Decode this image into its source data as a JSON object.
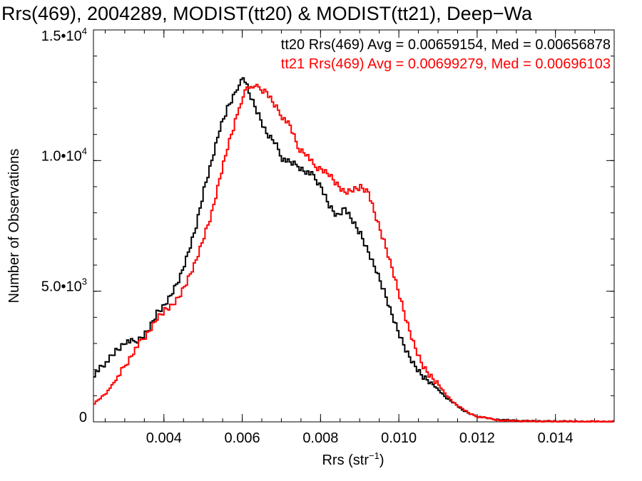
{
  "chart_data": {
    "type": "line",
    "title": "Rrs(469), 2004289, MODIST(tt20) & MODIST(tt21), Deep−Wa",
    "xlabel": "Rrs (str",
    "xlabel_sup": "−1",
    "xlabel_close": ")",
    "ylabel": "Number of Observations",
    "xlim": [
      0.0022,
      0.0155
    ],
    "ylim": [
      0,
      15000
    ],
    "x_ticks": [
      {
        "value": 0.004,
        "label": "0.004"
      },
      {
        "value": 0.006,
        "label": "0.006"
      },
      {
        "value": 0.008,
        "label": "0.008"
      },
      {
        "value": 0.01,
        "label": "0.010"
      },
      {
        "value": 0.012,
        "label": "0.012"
      },
      {
        "value": 0.014,
        "label": "0.014"
      }
    ],
    "y_ticks": [
      {
        "value": 0,
        "mantissa": "0",
        "exponent": ""
      },
      {
        "value": 5000,
        "mantissa": "5.0•10",
        "exponent": "3"
      },
      {
        "value": 10000,
        "mantissa": "1.0•10",
        "exponent": "4"
      },
      {
        "value": 15000,
        "mantissa": "1.5•10",
        "exponent": "4"
      }
    ],
    "x_minor_step": 0.0005,
    "y_minor_step": 1000,
    "legend_placement": "top-right",
    "series": [
      {
        "name": "tt20",
        "label": "tt20 Rrs(469) Avg = 0.00659154, Med = 0.00656878",
        "color": "#000000",
        "x": [
          0.0022,
          0.0025,
          0.0028,
          0.003,
          0.0032,
          0.0034,
          0.0036,
          0.0038,
          0.004,
          0.0042,
          0.0044,
          0.0046,
          0.0048,
          0.005,
          0.0052,
          0.0054,
          0.0056,
          0.0058,
          0.0059,
          0.006,
          0.0061,
          0.0062,
          0.0064,
          0.0066,
          0.0068,
          0.007,
          0.0072,
          0.0074,
          0.0076,
          0.0078,
          0.008,
          0.0082,
          0.0084,
          0.0086,
          0.0088,
          0.009,
          0.0092,
          0.0094,
          0.0096,
          0.0098,
          0.01,
          0.0102,
          0.0104,
          0.0106,
          0.0108,
          0.011,
          0.0112,
          0.0114,
          0.0116,
          0.0118,
          0.012,
          0.0122,
          0.0124,
          0.0126,
          0.013,
          0.014,
          0.0155
        ],
        "y": [
          1850,
          2250,
          2800,
          3100,
          3050,
          3250,
          3600,
          4200,
          4500,
          5000,
          5600,
          6500,
          7500,
          8900,
          10000,
          11200,
          12000,
          12600,
          12950,
          13050,
          12900,
          12400,
          11700,
          11000,
          10700,
          10100,
          9900,
          9800,
          9600,
          9400,
          9000,
          8300,
          7900,
          8200,
          7700,
          7200,
          6500,
          5800,
          5000,
          4100,
          3300,
          2600,
          2100,
          1700,
          1500,
          1200,
          900,
          700,
          450,
          300,
          200,
          150,
          100,
          80,
          40,
          20,
          10
        ]
      },
      {
        "name": "tt21",
        "label": "tt21 Rrs(469) Avg = 0.00699279, Med = 0.00696103",
        "color": "#ff0000",
        "x": [
          0.0022,
          0.0025,
          0.0028,
          0.003,
          0.0032,
          0.0034,
          0.0036,
          0.0038,
          0.004,
          0.0042,
          0.0044,
          0.0046,
          0.0048,
          0.005,
          0.0052,
          0.0054,
          0.0056,
          0.0058,
          0.0059,
          0.006,
          0.0061,
          0.0062,
          0.0063,
          0.0064,
          0.0066,
          0.0068,
          0.007,
          0.0072,
          0.0074,
          0.0076,
          0.0078,
          0.008,
          0.0082,
          0.0084,
          0.0086,
          0.0088,
          0.009,
          0.0092,
          0.0094,
          0.0096,
          0.0098,
          0.01,
          0.0102,
          0.0104,
          0.0106,
          0.0108,
          0.011,
          0.0112,
          0.0114,
          0.0116,
          0.0118,
          0.012,
          0.0122,
          0.0124,
          0.0126,
          0.013,
          0.014,
          0.0155
        ],
        "y": [
          700,
          1100,
          1700,
          2200,
          2700,
          3100,
          3500,
          4000,
          4300,
          4500,
          4900,
          5500,
          6200,
          7100,
          8000,
          9300,
          10500,
          11500,
          12000,
          12500,
          12700,
          12800,
          12900,
          12700,
          12600,
          12100,
          11700,
          11300,
          10500,
          10300,
          9800,
          9700,
          9500,
          9100,
          8800,
          8900,
          9000,
          8800,
          7800,
          6900,
          5900,
          4800,
          3700,
          2800,
          2100,
          1700,
          1400,
          1000,
          700,
          500,
          300,
          200,
          150,
          100,
          50,
          30,
          15,
          10
        ]
      }
    ]
  }
}
